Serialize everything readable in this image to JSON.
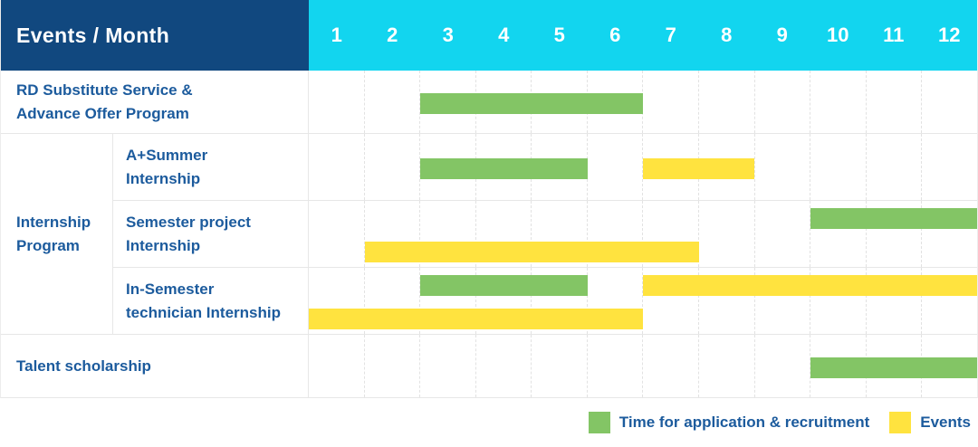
{
  "table": {
    "corner_label": "Events / Month",
    "months": [
      "1",
      "2",
      "3",
      "4",
      "5",
      "6",
      "7",
      "8",
      "9",
      "10",
      "11",
      "12"
    ]
  },
  "colors": {
    "header_bg": "#11487F",
    "months_bg": "#12D5EF",
    "recruitment": "#83C565",
    "event": "#FFE33F",
    "label_text": "#1C5B9D"
  },
  "chart_data": {
    "type": "table",
    "x": {
      "label": "Month",
      "ticks": [
        1,
        2,
        3,
        4,
        5,
        6,
        7,
        8,
        9,
        10,
        11,
        12
      ]
    },
    "grid": "vertical-dashed",
    "rows": [
      {
        "label": "RD Substitute Service & Advance Offer Program",
        "label_lines": [
          "RD Substitute Service &",
          "Advance Offer Program"
        ],
        "group": null,
        "bars": [
          {
            "series": "recruitment",
            "start_month": 3,
            "end_month": 6,
            "line": "center"
          }
        ]
      },
      {
        "label": "A+Summer Internship",
        "label_lines": [
          "A+Summer",
          "Internship"
        ],
        "group": "Internship Program",
        "bars": [
          {
            "series": "recruitment",
            "start_month": 3,
            "end_month": 5,
            "line": "center"
          },
          {
            "series": "event",
            "start_month": 7,
            "end_month": 8,
            "line": "center"
          }
        ]
      },
      {
        "label": "Semester project Internship",
        "label_lines": [
          "Semester project",
          "Internship"
        ],
        "group": "Internship Program",
        "bars": [
          {
            "series": "recruitment",
            "start_month": 10,
            "end_month": 12,
            "line": "top"
          },
          {
            "series": "event",
            "start_month": 2,
            "end_month": 7,
            "line": "bottom"
          }
        ]
      },
      {
        "label": "In-Semester technician Internship",
        "label_lines": [
          "In-Semester",
          "technician Internship"
        ],
        "group": "Internship Program",
        "bars": [
          {
            "series": "recruitment",
            "start_month": 3,
            "end_month": 5,
            "line": "top"
          },
          {
            "series": "event",
            "start_month": 7,
            "end_month": 12,
            "line": "top"
          },
          {
            "series": "event",
            "start_month": 1,
            "end_month": 6,
            "line": "bottom"
          }
        ]
      },
      {
        "label": "Talent scholarship",
        "label_lines": [
          "Talent scholarship"
        ],
        "group": null,
        "bars": [
          {
            "series": "recruitment",
            "start_month": 10,
            "end_month": 12,
            "line": "center"
          }
        ]
      }
    ],
    "groups": {
      "Internship Program": {
        "label_lines": [
          "Internship",
          "Program"
        ]
      }
    },
    "legend": [
      {
        "series": "recruitment",
        "label": "Time for application & recruitment",
        "color": "#83C565"
      },
      {
        "series": "event",
        "label": "Events",
        "color": "#FFE33F"
      }
    ],
    "legend_position": "bottom-right"
  }
}
